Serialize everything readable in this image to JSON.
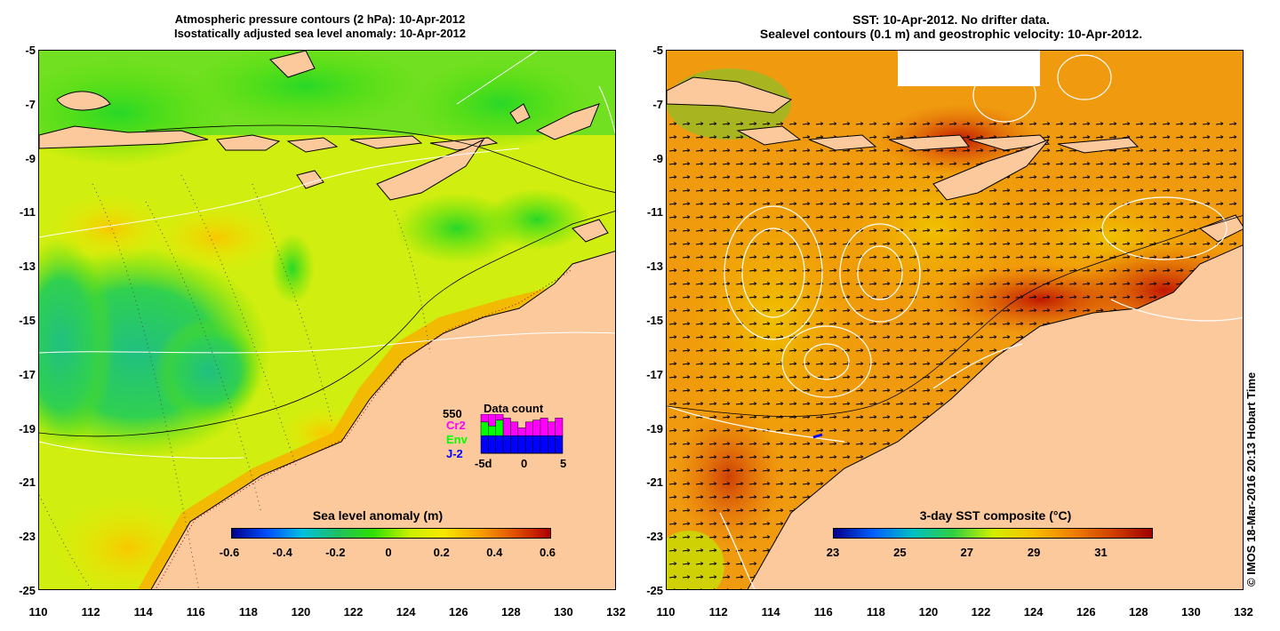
{
  "left_panel": {
    "title_line1": "Atmospheric pressure contours (2 hPa): 10-Apr-2012",
    "title_line2": "Isostatically adjusted sea level anomaly: 10-Apr-2012",
    "colorbar": {
      "label": "Sea level anomaly (m)",
      "ticks": [
        "-0.6",
        "-0.4",
        "-0.2",
        "0",
        "0.2",
        "0.4",
        "0.6"
      ]
    },
    "data_count": {
      "title": "Data count",
      "max": "550",
      "series": [
        "Cr2",
        "Env",
        "J-2"
      ],
      "colors": [
        "#ff00ff",
        "#00ff00",
        "#0000ff"
      ],
      "x_ticks": [
        "-5d",
        "0",
        "5"
      ],
      "bars": [
        {
          "j2": 0.45,
          "env": 0.35,
          "cr2": 0.2
        },
        {
          "j2": 0.45,
          "env": 0.25,
          "cr2": 0.3
        },
        {
          "j2": 0.45,
          "env": 0.4,
          "cr2": 0.15
        },
        {
          "j2": 0.45,
          "env": 0.0,
          "cr2": 0.45
        },
        {
          "j2": 0.45,
          "env": 0.0,
          "cr2": 0.35
        },
        {
          "j2": 0.45,
          "env": 0.0,
          "cr2": 0.2
        },
        {
          "j2": 0.45,
          "env": 0.0,
          "cr2": 0.35
        },
        {
          "j2": 0.45,
          "env": 0.0,
          "cr2": 0.4
        },
        {
          "j2": 0.45,
          "env": 0.0,
          "cr2": 0.45
        },
        {
          "j2": 0.45,
          "env": 0.0,
          "cr2": 0.35
        },
        {
          "j2": 0.45,
          "env": 0.0,
          "cr2": 0.45
        }
      ]
    }
  },
  "right_panel": {
    "title_line1": "SST: 10-Apr-2012. No drifter data.",
    "title_line2": "Sealevel contours (0.1 m) and geostrophic velocity: 10-Apr-2012.",
    "colorbar": {
      "label": "3-day SST composite (°C)",
      "ticks": [
        "23",
        "25",
        "27",
        "29",
        "31"
      ]
    }
  },
  "axes": {
    "y_ticks": [
      "-5",
      "-7",
      "-9",
      "-11",
      "-13",
      "-15",
      "-17",
      "-19",
      "-21",
      "-23",
      "-25"
    ],
    "x_ticks": [
      "110",
      "112",
      "114",
      "116",
      "118",
      "120",
      "122",
      "124",
      "126",
      "128",
      "130",
      "132"
    ]
  },
  "credit": "© IMOS 18-Mar-2016 20:13 Hobart Time",
  "colors": {
    "land": "#fcc99c",
    "sla_scale": [
      "#00008b",
      "#0050ff",
      "#00c0e0",
      "#20c060",
      "#30e000",
      "#c8f000",
      "#f8e800",
      "#f8a000",
      "#e05000",
      "#b00000"
    ],
    "sst_scale": [
      "#00008b",
      "#0060ff",
      "#00c0c0",
      "#30d040",
      "#d0f000",
      "#f8c000",
      "#f08000",
      "#d04000",
      "#a00000"
    ]
  }
}
